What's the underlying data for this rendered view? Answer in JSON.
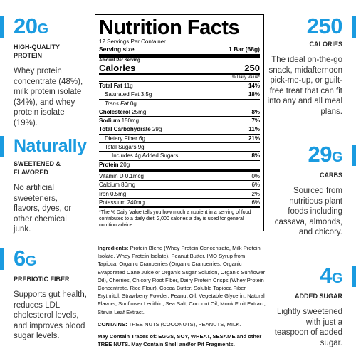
{
  "left": [
    {
      "value": "20",
      "unit": "G",
      "title": "HIGH-QUALITY PROTEIN",
      "text": "Whey protein concentrate (48%), milk protein isolate (34%), and whey protein isolate (19%)."
    },
    {
      "value": "Naturally",
      "title": "SWEETENED & FLAVORED",
      "text": "No artificial sweeteners, flavors, dyes, or other chemical junk."
    },
    {
      "value": "6",
      "unit": "G",
      "title": "PREBIOTIC FIBER",
      "text": "Supports gut health, reduces LDL cholesterol levels, and improves blood sugar levels."
    }
  ],
  "right": [
    {
      "value": "250",
      "title": "CALORIES",
      "text": "The ideal on-the-go snack, midafternoon pick-me-up, or guilt-free treat that can fit into any and all meal plans."
    },
    {
      "value": "29",
      "unit": "G",
      "title": "CARBS",
      "text": "Sourced from nutritious plant foods including cassava, almonds, and chicory."
    },
    {
      "value": "4",
      "unit": "G",
      "title": "ADDED SUGAR",
      "text": "Lightly sweetened with just a teaspoon of added sugar."
    }
  ],
  "label": {
    "title": "Nutrition Facts",
    "servings": "12 Servings Per Container",
    "serving_size_label": "Serving size",
    "serving_size": "1 Bar (68g)",
    "amount_per_serving": "Amount Per Serving",
    "calories_label": "Calories",
    "calories": "250",
    "dv_header": "% Daily Value*",
    "nutrients": [
      {
        "name": "Total Fat",
        "amount": "11g",
        "dv": "14%"
      },
      {
        "name": "Saturated Fat",
        "amount": "3.5g",
        "dv": "18%"
      },
      {
        "name": "Trans Fat",
        "amount": "0g"
      },
      {
        "name": "Cholesterol",
        "amount": "25mg",
        "dv": "8%"
      },
      {
        "name": "Sodium",
        "amount": "150mg",
        "dv": "7%"
      },
      {
        "name": "Total Carbohydrate",
        "amount": "29g",
        "dv": "11%"
      },
      {
        "name": "Dietary Fiber",
        "amount": "6g",
        "dv": "21%"
      },
      {
        "name": "Total Sugars",
        "amount": "9g"
      },
      {
        "name": "Includes 4g Added Sugars",
        "dv": "8%"
      },
      {
        "name": "Protein",
        "amount": "20g"
      }
    ],
    "vitamins": [
      {
        "name": "Vitamin D 0.1mcg",
        "dv": "0%"
      },
      {
        "name": "Calcium 80mg",
        "dv": "6%"
      },
      {
        "name": "Iron 0.5mg",
        "dv": "2%"
      },
      {
        "name": "Potassium 240mg",
        "dv": "6%"
      }
    ],
    "footnote": "*The % Daily Value tells you how much a nutrient in a serving of food contributes to a daily diet. 2,000 calories a day is used for general nutrition advice."
  },
  "ingredients": {
    "label": "Ingredients:",
    "text": "Protein Blend (Whey Protein Concentrate, Milk Protein Isolate, Whey Protein Isolate), Peanut Butter, IMO Syrup from Tapioca, Organic Cranberries (Organic Cranberries, Organic Evaporated Cane Juice or Organic Sugar Solution, Organic Sunflower Oil), Cherries, Chicory Root Fiber, Dairy Protein Crisps (Whey Protein Concentrate, Rice Flour), Cocoa Butter, Soluble Tapioca Fiber, Erythritol, Strawberry Powder, Peanut Oil, Vegetable Glycerin, Natural Flavors, Sunflower Lecithin, Sea Salt, Coconut Oil, Monk Fruit Extract, Stevia Leaf Extract.",
    "contains_label": "CONTAINS:",
    "contains": "TREE NUTS (COCONUTS), PEANUTS, MILK.",
    "may_contain": "May Contain Traces of: EGGS, SOY, WHEAT, SESAME and other TREE NUTS. May Contain Shell and/or Pit Fragments."
  }
}
